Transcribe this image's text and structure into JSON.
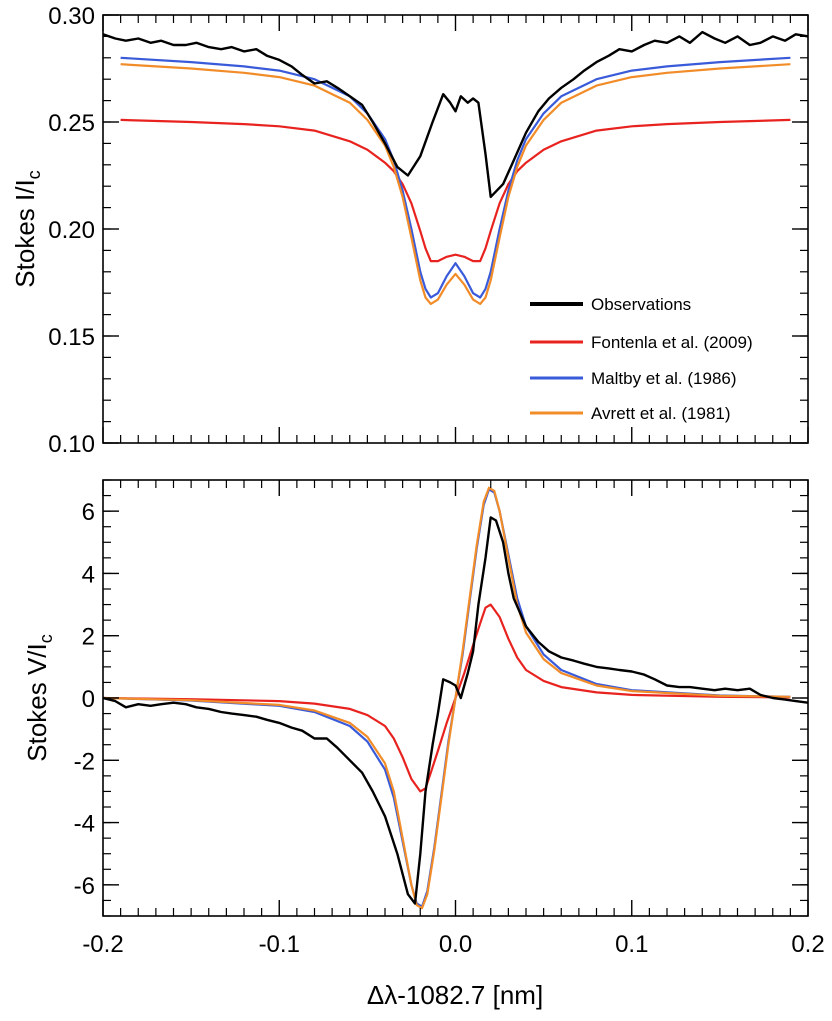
{
  "chart_data": [
    {
      "type": "line",
      "panel": "top",
      "ylabel": "Stokes I/I",
      "ylabel_subscript": "c",
      "xlabel": "",
      "xlim": [
        -0.2,
        0.2
      ],
      "ylim": [
        0.1,
        0.3
      ],
      "yticks": [
        "0.10",
        "0.15",
        "0.20",
        "0.25",
        "0.30"
      ],
      "grid": false,
      "legend_position": "lower-right",
      "series": [
        {
          "name": "Observations",
          "color": "#000000",
          "x": [
            -0.2,
            -0.193,
            -0.187,
            -0.18,
            -0.173,
            -0.167,
            -0.16,
            -0.153,
            -0.147,
            -0.14,
            -0.133,
            -0.127,
            -0.12,
            -0.113,
            -0.107,
            -0.1,
            -0.093,
            -0.087,
            -0.08,
            -0.073,
            -0.067,
            -0.06,
            -0.053,
            -0.047,
            -0.04,
            -0.033,
            -0.027,
            -0.02,
            -0.013,
            -0.007,
            -0.003,
            0.0,
            0.003,
            0.007,
            0.01,
            0.013,
            0.017,
            0.02,
            0.027,
            0.033,
            0.04,
            0.047,
            0.053,
            0.06,
            0.067,
            0.073,
            0.08,
            0.087,
            0.093,
            0.1,
            0.107,
            0.113,
            0.12,
            0.127,
            0.133,
            0.14,
            0.147,
            0.153,
            0.16,
            0.167,
            0.173,
            0.18,
            0.187,
            0.193,
            0.2
          ],
          "y": [
            0.291,
            0.289,
            0.288,
            0.289,
            0.287,
            0.288,
            0.286,
            0.286,
            0.287,
            0.285,
            0.284,
            0.285,
            0.283,
            0.284,
            0.281,
            0.279,
            0.276,
            0.272,
            0.268,
            0.269,
            0.266,
            0.262,
            0.258,
            0.25,
            0.24,
            0.229,
            0.225,
            0.234,
            0.25,
            0.263,
            0.259,
            0.255,
            0.262,
            0.259,
            0.261,
            0.259,
            0.235,
            0.215,
            0.221,
            0.232,
            0.245,
            0.255,
            0.261,
            0.266,
            0.27,
            0.274,
            0.278,
            0.281,
            0.284,
            0.283,
            0.286,
            0.288,
            0.287,
            0.29,
            0.287,
            0.292,
            0.289,
            0.287,
            0.29,
            0.286,
            0.287,
            0.29,
            0.288,
            0.291,
            0.29
          ]
        },
        {
          "name": "Fontenla et al. (2009)",
          "color": "#e8231f",
          "x": [
            -0.19,
            -0.15,
            -0.12,
            -0.1,
            -0.08,
            -0.06,
            -0.05,
            -0.04,
            -0.035,
            -0.03,
            -0.025,
            -0.02,
            -0.017,
            -0.014,
            -0.01,
            -0.005,
            0.0,
            0.005,
            0.01,
            0.014,
            0.017,
            0.02,
            0.025,
            0.03,
            0.035,
            0.04,
            0.05,
            0.06,
            0.08,
            0.1,
            0.12,
            0.15,
            0.19
          ],
          "y": [
            0.251,
            0.25,
            0.249,
            0.248,
            0.246,
            0.241,
            0.237,
            0.231,
            0.227,
            0.221,
            0.212,
            0.199,
            0.191,
            0.185,
            0.185,
            0.187,
            0.188,
            0.187,
            0.185,
            0.185,
            0.191,
            0.199,
            0.212,
            0.221,
            0.227,
            0.231,
            0.237,
            0.241,
            0.246,
            0.248,
            0.249,
            0.25,
            0.251
          ]
        },
        {
          "name": "Maltby et al. (1986)",
          "color": "#3a5bd9",
          "x": [
            -0.19,
            -0.15,
            -0.12,
            -0.1,
            -0.08,
            -0.06,
            -0.05,
            -0.04,
            -0.035,
            -0.03,
            -0.025,
            -0.02,
            -0.017,
            -0.014,
            -0.01,
            -0.005,
            0.0,
            0.005,
            0.01,
            0.014,
            0.017,
            0.02,
            0.025,
            0.03,
            0.035,
            0.04,
            0.05,
            0.06,
            0.08,
            0.1,
            0.12,
            0.15,
            0.19
          ],
          "y": [
            0.28,
            0.278,
            0.276,
            0.274,
            0.27,
            0.262,
            0.254,
            0.242,
            0.232,
            0.218,
            0.2,
            0.18,
            0.172,
            0.168,
            0.17,
            0.178,
            0.184,
            0.178,
            0.17,
            0.168,
            0.172,
            0.18,
            0.2,
            0.218,
            0.232,
            0.242,
            0.254,
            0.262,
            0.27,
            0.274,
            0.276,
            0.278,
            0.28
          ]
        },
        {
          "name": "Avrett et al. (1981)",
          "color": "#f28c28",
          "x": [
            -0.19,
            -0.15,
            -0.12,
            -0.1,
            -0.08,
            -0.06,
            -0.05,
            -0.04,
            -0.035,
            -0.03,
            -0.025,
            -0.02,
            -0.017,
            -0.014,
            -0.01,
            -0.005,
            0.0,
            0.005,
            0.01,
            0.014,
            0.017,
            0.02,
            0.025,
            0.03,
            0.035,
            0.04,
            0.05,
            0.06,
            0.08,
            0.1,
            0.12,
            0.15,
            0.19
          ],
          "y": [
            0.277,
            0.275,
            0.273,
            0.271,
            0.267,
            0.259,
            0.251,
            0.239,
            0.229,
            0.215,
            0.196,
            0.176,
            0.168,
            0.165,
            0.167,
            0.174,
            0.179,
            0.174,
            0.167,
            0.165,
            0.168,
            0.176,
            0.196,
            0.215,
            0.229,
            0.239,
            0.251,
            0.259,
            0.267,
            0.271,
            0.273,
            0.275,
            0.277
          ]
        }
      ]
    },
    {
      "type": "line",
      "panel": "bottom",
      "ylabel": "Stokes V/I",
      "ylabel_subscript": "c",
      "xlabel": "Δλ-1082.7 [nm]",
      "xlim": [
        -0.2,
        0.2
      ],
      "ylim": [
        -7,
        7
      ],
      "yticks": [
        "-6",
        "-4",
        "-2",
        "0",
        "2",
        "4",
        "6"
      ],
      "xticks": [
        "-0.2",
        "-0.1",
        "0.0",
        "0.1",
        "0.2"
      ],
      "grid": false,
      "series": [
        {
          "name": "Observations",
          "color": "#000000",
          "x": [
            -0.2,
            -0.193,
            -0.187,
            -0.18,
            -0.173,
            -0.167,
            -0.16,
            -0.153,
            -0.147,
            -0.14,
            -0.133,
            -0.127,
            -0.12,
            -0.113,
            -0.107,
            -0.1,
            -0.093,
            -0.087,
            -0.08,
            -0.073,
            -0.067,
            -0.06,
            -0.053,
            -0.047,
            -0.04,
            -0.033,
            -0.027,
            -0.023,
            -0.02,
            -0.017,
            -0.013,
            -0.01,
            -0.007,
            -0.003,
            0.0,
            0.003,
            0.007,
            0.01,
            0.013,
            0.017,
            0.02,
            0.023,
            0.027,
            0.03,
            0.033,
            0.04,
            0.047,
            0.053,
            0.06,
            0.067,
            0.073,
            0.08,
            0.087,
            0.093,
            0.1,
            0.107,
            0.113,
            0.12,
            0.127,
            0.133,
            0.14,
            0.147,
            0.153,
            0.16,
            0.167,
            0.173,
            0.18,
            0.187,
            0.193,
            0.2
          ],
          "y": [
            0.0,
            -0.1,
            -0.3,
            -0.2,
            -0.25,
            -0.2,
            -0.15,
            -0.2,
            -0.3,
            -0.35,
            -0.45,
            -0.5,
            -0.55,
            -0.6,
            -0.7,
            -0.8,
            -0.95,
            -1.05,
            -1.3,
            -1.3,
            -1.6,
            -2.0,
            -2.4,
            -3.0,
            -3.8,
            -5.0,
            -6.3,
            -6.6,
            -5.0,
            -3.0,
            -1.5,
            -0.5,
            0.6,
            0.5,
            0.4,
            0.0,
            0.8,
            1.5,
            3.0,
            4.5,
            5.8,
            5.7,
            5.0,
            4.0,
            3.2,
            2.3,
            1.8,
            1.5,
            1.3,
            1.2,
            1.1,
            1.0,
            0.95,
            0.9,
            0.85,
            0.75,
            0.6,
            0.4,
            0.35,
            0.35,
            0.3,
            0.25,
            0.3,
            0.25,
            0.3,
            0.1,
            0.0,
            -0.05,
            -0.1,
            -0.15
          ]
        },
        {
          "name": "Fontenla et al. (2009)",
          "color": "#e8231f",
          "x": [
            -0.2,
            -0.15,
            -0.1,
            -0.08,
            -0.06,
            -0.05,
            -0.04,
            -0.035,
            -0.03,
            -0.025,
            -0.02,
            -0.017,
            -0.014,
            -0.01,
            -0.005,
            0.0,
            0.005,
            0.01,
            0.014,
            0.017,
            0.02,
            0.025,
            0.03,
            0.035,
            0.04,
            0.05,
            0.06,
            0.08,
            0.1,
            0.15,
            0.19
          ],
          "y": [
            0.0,
            -0.04,
            -0.1,
            -0.18,
            -0.35,
            -0.55,
            -0.9,
            -1.3,
            -1.9,
            -2.6,
            -3.0,
            -2.9,
            -2.4,
            -1.7,
            -0.8,
            0.0,
            0.8,
            1.7,
            2.4,
            2.9,
            3.0,
            2.6,
            1.9,
            1.3,
            0.9,
            0.55,
            0.35,
            0.18,
            0.1,
            0.04,
            0.02
          ]
        },
        {
          "name": "Maltby et al. (1986)",
          "color": "#3a5bd9",
          "x": [
            -0.2,
            -0.15,
            -0.1,
            -0.08,
            -0.06,
            -0.05,
            -0.04,
            -0.035,
            -0.03,
            -0.025,
            -0.022,
            -0.019,
            -0.016,
            -0.012,
            -0.008,
            -0.004,
            0.0,
            0.004,
            0.008,
            0.012,
            0.016,
            0.019,
            0.022,
            0.025,
            0.03,
            0.035,
            0.04,
            0.05,
            0.06,
            0.08,
            0.1,
            0.15,
            0.19
          ],
          "y": [
            0.0,
            -0.08,
            -0.25,
            -0.45,
            -0.9,
            -1.4,
            -2.3,
            -3.2,
            -4.6,
            -6.0,
            -6.6,
            -6.7,
            -6.2,
            -4.8,
            -3.1,
            -1.4,
            0.0,
            1.4,
            3.1,
            4.8,
            6.2,
            6.7,
            6.6,
            6.0,
            4.6,
            3.2,
            2.3,
            1.4,
            0.9,
            0.45,
            0.25,
            0.08,
            0.04
          ]
        },
        {
          "name": "Avrett et al. (1981)",
          "color": "#f28c28",
          "x": [
            -0.2,
            -0.15,
            -0.1,
            -0.08,
            -0.06,
            -0.05,
            -0.04,
            -0.035,
            -0.03,
            -0.025,
            -0.022,
            -0.019,
            -0.016,
            -0.012,
            -0.008,
            -0.004,
            0.0,
            0.004,
            0.008,
            0.012,
            0.016,
            0.019,
            0.022,
            0.025,
            0.03,
            0.035,
            0.04,
            0.05,
            0.06,
            0.08,
            0.1,
            0.15,
            0.19
          ],
          "y": [
            0.0,
            -0.07,
            -0.22,
            -0.4,
            -0.8,
            -1.25,
            -2.1,
            -3.0,
            -4.5,
            -6.0,
            -6.65,
            -6.75,
            -6.3,
            -4.9,
            -3.2,
            -1.5,
            0.0,
            1.5,
            3.2,
            4.9,
            6.3,
            6.75,
            6.65,
            6.0,
            4.5,
            3.0,
            2.1,
            1.25,
            0.8,
            0.4,
            0.22,
            0.07,
            0.04
          ]
        }
      ]
    }
  ]
}
